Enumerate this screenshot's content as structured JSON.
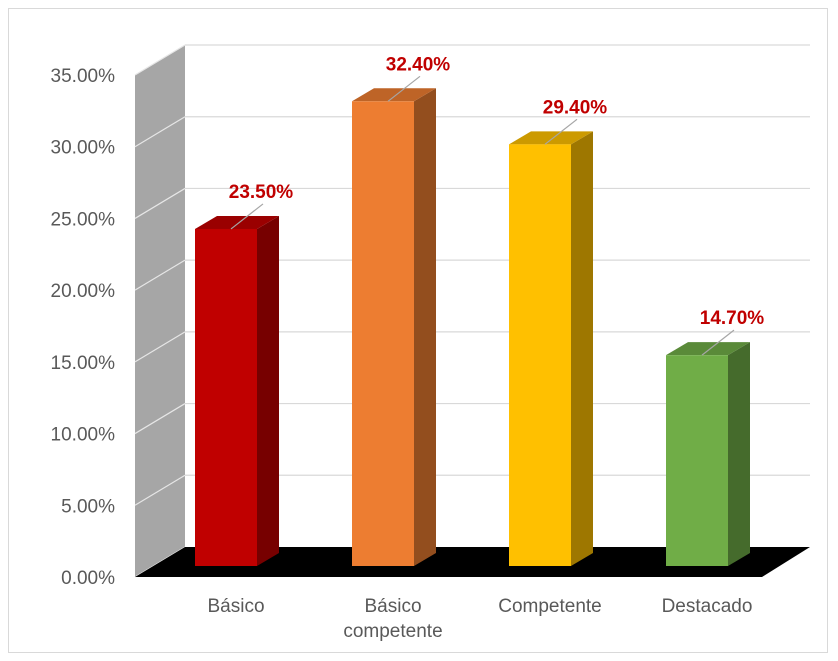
{
  "chart_data": {
    "type": "bar",
    "title": "",
    "xlabel": "",
    "ylabel": "",
    "ylim": [
      0,
      0.35
    ],
    "yticks": [
      "0.00%",
      "5.00%",
      "10.00%",
      "15.00%",
      "20.00%",
      "25.00%",
      "30.00%",
      "35.00%"
    ],
    "categories": [
      "Básico",
      "Básico competente",
      "Competente",
      "Destacado"
    ],
    "category_label_lines": [
      [
        "Básico"
      ],
      [
        "Básico",
        "competente"
      ],
      [
        "Competente"
      ],
      [
        "Destacado"
      ]
    ],
    "values": [
      0.235,
      0.324,
      0.294,
      0.147
    ],
    "data_labels": [
      "23.50%",
      "32.40%",
      "29.40%",
      "14.70%"
    ],
    "bar_colors": [
      "#c00000",
      "#ed7d31",
      "#ffc000",
      "#70ad47"
    ],
    "data_label_color": "#c00000",
    "grid": true,
    "legend": "none",
    "style": "3d-column",
    "wall_color": "#a6a6a6",
    "floor_color": "#000000"
  }
}
